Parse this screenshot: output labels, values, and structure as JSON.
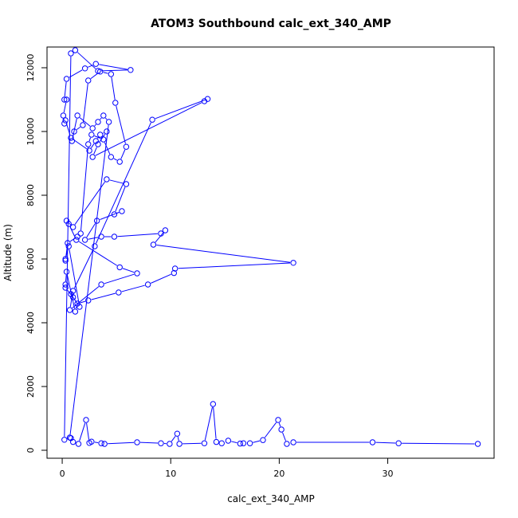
{
  "chart_data": {
    "type": "line",
    "title": "ATOM3 Southbound calc_ext_340_AMP",
    "xlabel": "calc_ext_340_AMP",
    "ylabel": "Altitude (m)",
    "xlim": [
      -1.4,
      39.8
    ],
    "ylim": [
      -250,
      12650
    ],
    "xticks": [
      0,
      10,
      20,
      30
    ],
    "yticks": [
      0,
      2000,
      4000,
      6000,
      8000,
      10000,
      12000
    ],
    "grid": false,
    "legend": "none",
    "series_color": "#0000ff",
    "series": [
      {
        "points": [
          [
            0.2,
            330
          ],
          [
            0.8,
            12450
          ],
          [
            1.2,
            12550
          ],
          [
            3.3,
            11900
          ],
          [
            6.3,
            11930
          ],
          [
            3.1,
            12120
          ],
          [
            2.1,
            11980
          ],
          [
            0.4,
            11650
          ],
          [
            0.2,
            11000
          ],
          [
            0.4,
            11000
          ],
          [
            0.1,
            10500
          ],
          [
            0.2,
            10250
          ],
          [
            0.3,
            10350
          ],
          [
            0.8,
            9800
          ],
          [
            2.5,
            9400
          ],
          [
            3.1,
            9700
          ],
          [
            3.5,
            9900
          ],
          [
            4.1,
            10000
          ],
          [
            3.3,
            9600
          ],
          [
            2.8,
            9200
          ],
          [
            13.1,
            10950
          ],
          [
            13.4,
            11020
          ],
          [
            8.3,
            10370
          ],
          [
            3.0,
            6400
          ],
          [
            1.0,
            5000
          ],
          [
            0.7,
            4400
          ],
          [
            3.6,
            5200
          ],
          [
            6.9,
            5550
          ],
          [
            5.3,
            5740
          ],
          [
            1.3,
            6600
          ],
          [
            0.6,
            7100
          ],
          [
            0.4,
            7200
          ],
          [
            1.0,
            7000
          ],
          [
            4.1,
            8500
          ],
          [
            5.9,
            8350
          ],
          [
            4.8,
            7400
          ],
          [
            5.5,
            7500
          ],
          [
            3.2,
            7200
          ],
          [
            2.1,
            6600
          ],
          [
            3.6,
            6700
          ],
          [
            4.8,
            6700
          ],
          [
            9.1,
            6800
          ],
          [
            9.5,
            6900
          ],
          [
            8.4,
            6450
          ],
          [
            21.3,
            5880
          ],
          [
            10.4,
            5700
          ],
          [
            10.3,
            5560
          ],
          [
            7.9,
            5200
          ],
          [
            5.2,
            4950
          ],
          [
            2.4,
            4700
          ],
          [
            1.4,
            4600
          ],
          [
            1.2,
            4350
          ],
          [
            0.4,
            5600
          ],
          [
            0.3,
            5200
          ],
          [
            0.3,
            5100
          ],
          [
            1.0,
            4800
          ],
          [
            0.8,
            4900
          ],
          [
            1.6,
            4500
          ],
          [
            0.6,
            6400
          ],
          [
            0.3,
            6000
          ],
          [
            0.3,
            5950
          ],
          [
            0.5,
            6500
          ],
          [
            1.4,
            6700
          ],
          [
            1.7,
            6800
          ],
          [
            2.4,
            9600
          ],
          [
            2.7,
            9900
          ],
          [
            3.8,
            9750
          ],
          [
            4.5,
            9200
          ],
          [
            5.3,
            9050
          ],
          [
            5.9,
            9520
          ],
          [
            4.9,
            10900
          ],
          [
            4.5,
            11800
          ],
          [
            3.5,
            11880
          ],
          [
            2.4,
            11600
          ],
          [
            1.9,
            10200
          ],
          [
            1.1,
            10000
          ],
          [
            0.9,
            9700
          ],
          [
            1.4,
            10500
          ],
          [
            2.8,
            10100
          ],
          [
            3.3,
            10300
          ],
          [
            3.8,
            10500
          ],
          [
            4.3,
            10300
          ],
          [
            0.7,
            400
          ],
          [
            0.8,
            380
          ],
          [
            1.0,
            260
          ],
          [
            1.5,
            200
          ],
          [
            2.2,
            950
          ],
          [
            2.5,
            230
          ],
          [
            2.7,
            270
          ],
          [
            3.6,
            220
          ],
          [
            3.9,
            200
          ],
          [
            6.9,
            250
          ],
          [
            9.1,
            220
          ],
          [
            9.9,
            200
          ],
          [
            10.6,
            520
          ],
          [
            10.8,
            200
          ],
          [
            13.1,
            220
          ],
          [
            13.9,
            1450
          ],
          [
            14.2,
            260
          ],
          [
            14.7,
            220
          ],
          [
            15.3,
            300
          ],
          [
            16.4,
            210
          ],
          [
            16.7,
            220
          ],
          [
            17.3,
            220
          ],
          [
            18.5,
            320
          ],
          [
            19.9,
            950
          ],
          [
            20.2,
            650
          ],
          [
            20.7,
            200
          ],
          [
            21.3,
            250
          ],
          [
            28.6,
            250
          ],
          [
            31.0,
            220
          ],
          [
            38.3,
            200
          ]
        ]
      }
    ]
  }
}
